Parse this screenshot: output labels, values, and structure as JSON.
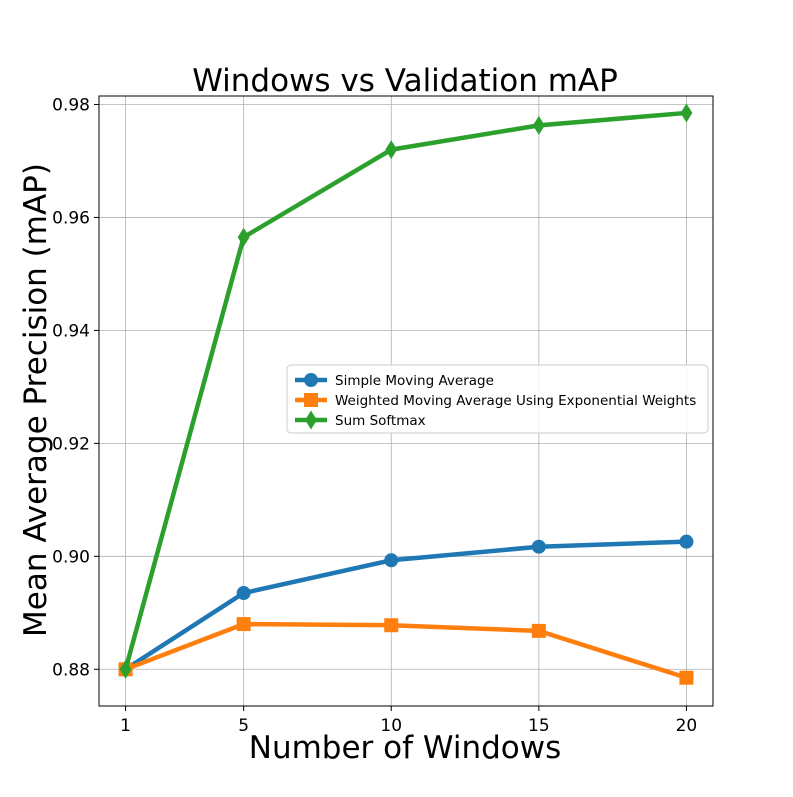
{
  "chart_data": {
    "type": "line",
    "title": "Windows vs Validation mAP",
    "xlabel": "Number of Windows",
    "ylabel": "Mean Average Precision (mAP)",
    "x": [
      1,
      5,
      10,
      15,
      20
    ],
    "xticks": [
      "1",
      "5",
      "10",
      "15",
      "20"
    ],
    "yticks": [
      "0.88",
      "0.90",
      "0.92",
      "0.94",
      "0.96",
      "0.98"
    ],
    "xlim": [
      0.1,
      20.9
    ],
    "ylim": [
      0.8735,
      0.9815
    ],
    "grid": true,
    "legend_position": "center-right",
    "series": [
      {
        "name": "Simple Moving Average",
        "color": "#1f77b4",
        "marker": "circle",
        "values": [
          0.88,
          0.8935,
          0.8993,
          0.9017,
          0.9026
        ]
      },
      {
        "name": "Weighted Moving Average Using Exponential Weights",
        "color": "#ff7f0e",
        "marker": "square",
        "values": [
          0.88,
          0.888,
          0.8878,
          0.8868,
          0.8785
        ]
      },
      {
        "name": "Sum Softmax",
        "color": "#2ca02c",
        "marker": "diamond",
        "values": [
          0.88,
          0.9565,
          0.972,
          0.9763,
          0.9785
        ]
      }
    ]
  }
}
